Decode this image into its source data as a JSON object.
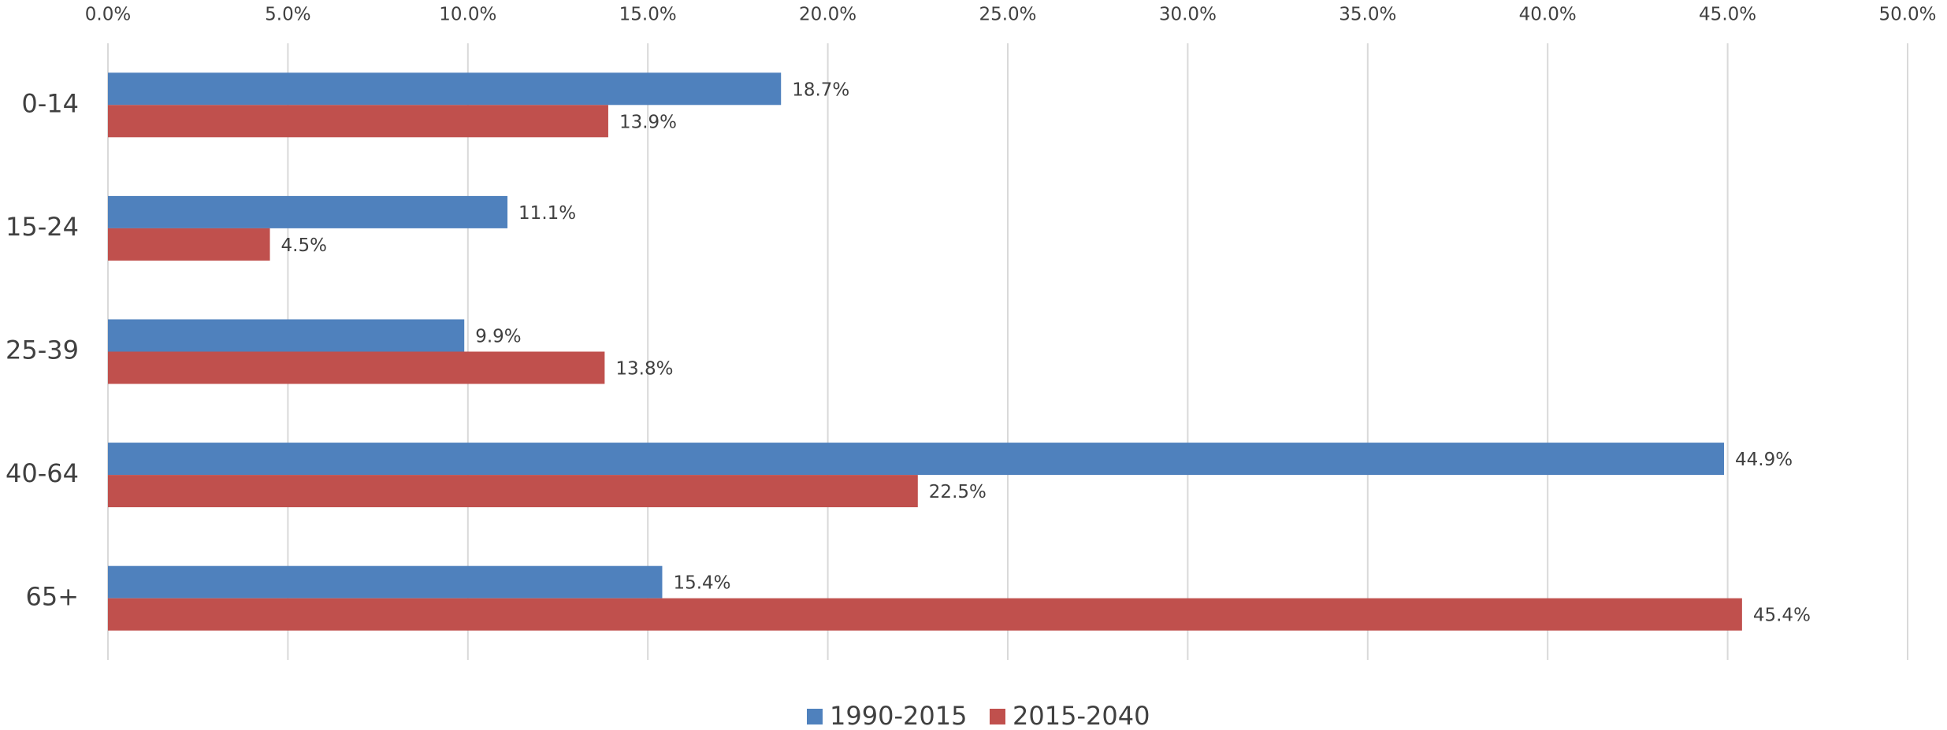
{
  "chart_data": {
    "type": "bar",
    "orientation": "horizontal",
    "categories": [
      "0-14",
      "15-24",
      "25-39",
      "40-64",
      "65+"
    ],
    "series": [
      {
        "name": "1990-2015",
        "color": "#4f81bd",
        "values": [
          18.7,
          11.1,
          9.9,
          44.9,
          15.4
        ],
        "value_labels": [
          "18.7%",
          "11.1%",
          "9.9%",
          "44.9%",
          "15.4%"
        ]
      },
      {
        "name": "2015-2040",
        "color": "#c0504d",
        "values": [
          13.9,
          4.5,
          13.8,
          22.5,
          45.4
        ],
        "value_labels": [
          "13.9%",
          "4.5%",
          "13.8%",
          "22.5%",
          "45.4%"
        ]
      }
    ],
    "xlim": [
      0,
      50
    ],
    "xticks": [
      {
        "value": 0,
        "label": "0.0%"
      },
      {
        "value": 5,
        "label": "5.0%"
      },
      {
        "value": 10,
        "label": "10.0%"
      },
      {
        "value": 15,
        "label": "15.0%"
      },
      {
        "value": 20,
        "label": "20.0%"
      },
      {
        "value": 25,
        "label": "25.0%"
      },
      {
        "value": 30,
        "label": "30.0%"
      },
      {
        "value": 35,
        "label": "35.0%"
      },
      {
        "value": 40,
        "label": "40.0%"
      },
      {
        "value": 45,
        "label": "45.0%"
      },
      {
        "value": 50,
        "label": "50.0%"
      }
    ],
    "grid": true,
    "legend": "bottom"
  }
}
